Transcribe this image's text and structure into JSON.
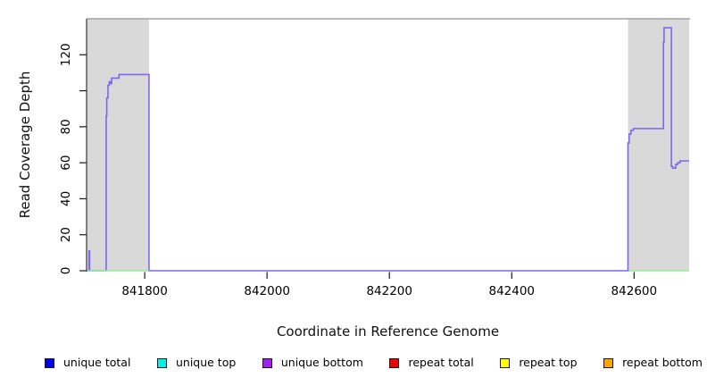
{
  "chart_data": {
    "type": "line",
    "title": "",
    "xlabel": "Coordinate in Reference Genome",
    "ylabel": "Read Coverage Depth",
    "xlim": [
      841705,
      842690
    ],
    "ylim": [
      0,
      140
    ],
    "grid": false,
    "x_ticks": [
      {
        "value": 841800,
        "label": "841800"
      },
      {
        "value": 842000,
        "label": "842000"
      },
      {
        "value": 842200,
        "label": "842200"
      },
      {
        "value": 842400,
        "label": "842400"
      },
      {
        "value": 842600,
        "label": "842600"
      }
    ],
    "y_ticks": [
      {
        "value": 0,
        "label": "0"
      },
      {
        "value": 20,
        "label": "20"
      },
      {
        "value": 40,
        "label": "40"
      },
      {
        "value": 60,
        "label": "60"
      },
      {
        "value": 80,
        "label": "80"
      },
      {
        "value": 100,
        "label": ""
      },
      {
        "value": 120,
        "label": "120"
      }
    ],
    "shaded_regions": [
      {
        "x0": 841705,
        "x1": 841807,
        "color": "#d9d9d9"
      },
      {
        "x0": 842590,
        "x1": 842690,
        "color": "#d9d9d9"
      }
    ],
    "baseline_segments": [
      {
        "x0": 841705,
        "x1": 841807,
        "y": 0,
        "color": "#90ee90"
      },
      {
        "x0": 842590,
        "x1": 842690,
        "y": 0,
        "color": "#90ee90"
      }
    ],
    "series": [
      {
        "name": "coverage-trace",
        "color": "#7b68ee",
        "points": [
          [
            841705,
            0
          ],
          [
            841709,
            0
          ],
          [
            841709,
            11
          ],
          [
            841710,
            11
          ],
          [
            841710,
            0
          ],
          [
            841737,
            0
          ],
          [
            841737,
            86
          ],
          [
            841738,
            86
          ],
          [
            841738,
            96
          ],
          [
            841740,
            96
          ],
          [
            841740,
            103
          ],
          [
            841742,
            103
          ],
          [
            841742,
            105
          ],
          [
            841744,
            105
          ],
          [
            841744,
            104
          ],
          [
            841746,
            104
          ],
          [
            841746,
            107
          ],
          [
            841758,
            107
          ],
          [
            841758,
            109
          ],
          [
            841807,
            109
          ],
          [
            841807,
            0
          ],
          [
            842590,
            0
          ],
          [
            842590,
            71
          ],
          [
            842592,
            71
          ],
          [
            842592,
            76
          ],
          [
            842595,
            76
          ],
          [
            842595,
            78
          ],
          [
            842599,
            78
          ],
          [
            842599,
            79
          ],
          [
            842648,
            79
          ],
          [
            842648,
            127
          ],
          [
            842649,
            127
          ],
          [
            842649,
            135
          ],
          [
            842661,
            135
          ],
          [
            842661,
            58
          ],
          [
            842663,
            58
          ],
          [
            842663,
            57
          ],
          [
            842668,
            57
          ],
          [
            842668,
            59
          ],
          [
            842671,
            59
          ],
          [
            842671,
            60
          ],
          [
            842675,
            60
          ],
          [
            842675,
            61
          ],
          [
            842690,
            61
          ]
        ]
      }
    ],
    "frame": {
      "top_line_color": "#a3a3a3",
      "left_line_color": "#454545",
      "tick_color": "#1a1a1a"
    }
  },
  "legend": {
    "items": [
      {
        "label": "unique total",
        "color": "#0000ee"
      },
      {
        "label": "unique top",
        "color": "#00eeee"
      },
      {
        "label": "unique bottom",
        "color": "#a020f0"
      },
      {
        "label": "repeat total",
        "color": "#ee0000"
      },
      {
        "label": "repeat top",
        "color": "#ffff00"
      },
      {
        "label": "repeat bottom",
        "color": "#ffa500"
      }
    ]
  }
}
